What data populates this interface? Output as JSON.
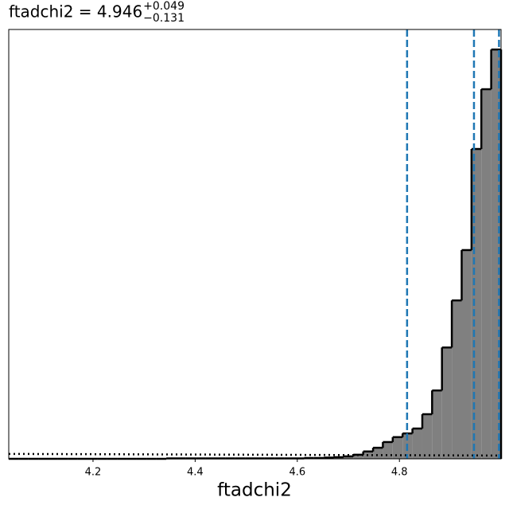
{
  "chart_data": {
    "type": "histogram",
    "title": {
      "main": "ftadchi2 = 4.946",
      "upper": "+0.049",
      "lower": "−0.131"
    },
    "xlabel": "ftadchi2",
    "bins": [
      4.035,
      4.0543,
      4.0736,
      4.0928,
      4.1121,
      4.1314,
      4.1507,
      4.17,
      4.1892,
      4.2085,
      4.2278,
      4.2471,
      4.2664,
      4.2856,
      4.3049,
      4.3242,
      4.3435,
      4.3628,
      4.382,
      4.4013,
      4.4206,
      4.4399,
      4.4592,
      4.4784,
      4.4977,
      4.517,
      4.5363,
      4.5556,
      4.5748,
      4.5941,
      4.6134,
      4.6327,
      4.652,
      4.6712,
      4.6905,
      4.7098,
      4.7291,
      4.7484,
      4.7676,
      4.7869,
      4.8062,
      4.8255,
      4.8448,
      4.864,
      4.8833,
      4.9026,
      4.9219,
      4.9412,
      4.9604,
      4.9797,
      4.999
    ],
    "values": [
      0,
      0,
      0,
      0,
      0,
      0,
      0,
      0,
      0,
      0,
      0,
      0,
      0,
      0,
      0,
      0,
      0.1,
      0.1,
      0.1,
      0.1,
      0.1,
      0.1,
      0.1,
      0.1,
      0.1,
      0.1,
      0.1,
      0.1,
      0.1,
      0.1,
      0.2,
      0.2,
      0.3,
      0.4,
      0.6,
      1.0,
      1.8,
      2.7,
      4.1,
      5.3,
      6.2,
      7.4,
      10.9,
      16.7,
      27.2,
      38.7,
      51.0,
      75.7,
      90.3,
      100
    ],
    "color": "#808080",
    "edge_color": "#000000",
    "quantiles": [
      4.815,
      4.946,
      4.995
    ],
    "quantile_color": "#1f77b4",
    "reference_line": [
      1.2,
      0.8
    ],
    "xlim": [
      4.035,
      4.999
    ],
    "ylim": [
      0,
      104.9
    ],
    "xticks": [
      4.2,
      4.4,
      4.6,
      4.8
    ]
  }
}
